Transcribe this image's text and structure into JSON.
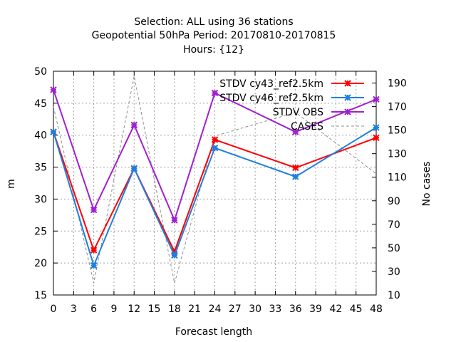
{
  "title_lines": [
    "Selection: ALL using    36 stations",
    "Geopotential 50hPa   Period: 20170810-20170815",
    "Hours: {12}"
  ],
  "chart_data": {
    "type": "line",
    "xlabel": "Forecast length",
    "ylabel": "m",
    "y2label": "No cases",
    "xlim": [
      0,
      48
    ],
    "ylim": [
      15,
      50
    ],
    "y2lim": [
      10,
      200
    ],
    "xticks": [
      0,
      3,
      6,
      9,
      12,
      15,
      18,
      21,
      24,
      27,
      30,
      33,
      36,
      39,
      42,
      45,
      48
    ],
    "yticks": [
      15,
      20,
      25,
      30,
      35,
      40,
      45,
      50
    ],
    "y2ticks": [
      10,
      30,
      50,
      70,
      90,
      110,
      130,
      150,
      170,
      190
    ],
    "grid": true,
    "legend_position": "top-right",
    "x": [
      0,
      6,
      12,
      18,
      24,
      36,
      48
    ],
    "series": [
      {
        "name": "STDV cy43_ref2.5km",
        "color": "#ff0000",
        "values": [
          40.5,
          22.0,
          34.8,
          21.8,
          39.3,
          34.9,
          39.6
        ]
      },
      {
        "name": "STDV cy46_ref2.5km",
        "color": "#1f7fdf",
        "values": [
          40.5,
          19.6,
          34.8,
          21.2,
          38.0,
          33.5,
          41.2
        ]
      },
      {
        "name": "STDV OBS",
        "color": "#a020d0",
        "values": [
          47.1,
          28.3,
          41.6,
          26.7,
          46.6,
          40.5,
          45.6
        ]
      },
      {
        "name": "CASES",
        "color": "#909090",
        "axis": "y2",
        "dashed": true,
        "values": [
          170,
          20,
          196,
          20,
          145,
          165,
          113
        ]
      }
    ]
  }
}
